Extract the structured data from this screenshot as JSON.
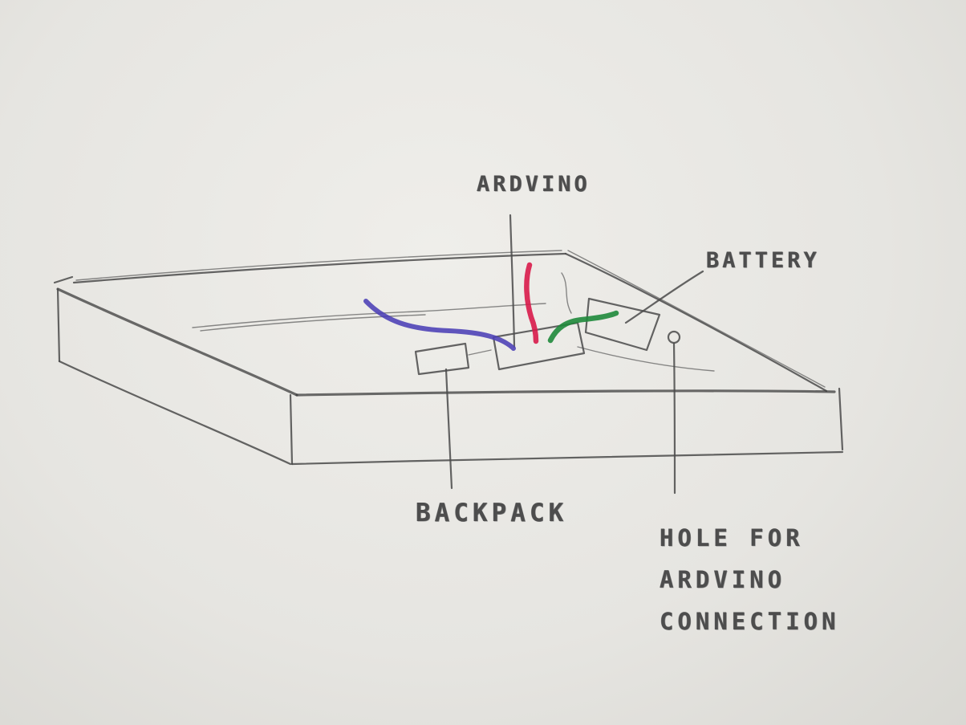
{
  "labels": {
    "arduino": "ARDVINO",
    "battery": "BATTERY",
    "backpack": "BACKPACK",
    "hole": [
      "HOLE FOR",
      "ARDVINO",
      "CONNECTION"
    ]
  },
  "colors": {
    "paper": "#e7e6e2",
    "pencil": "#4a4a4a",
    "wire_red": "#d81b4a",
    "wire_blue": "#4b3fb5",
    "wire_green": "#1f8a3b"
  }
}
